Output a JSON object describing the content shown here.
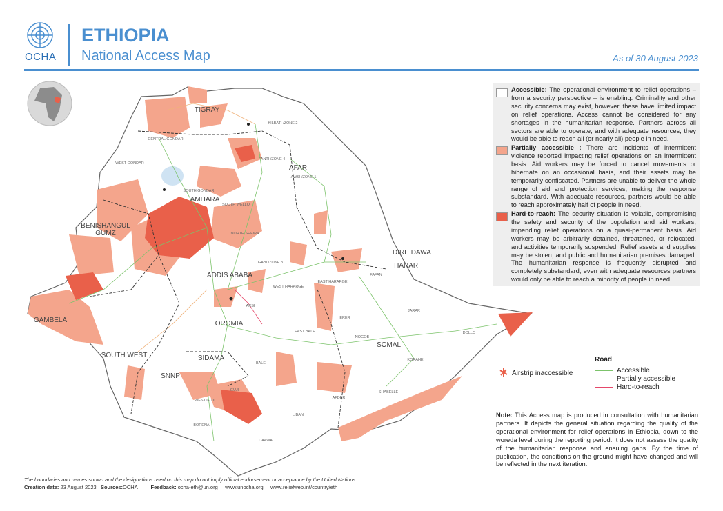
{
  "header": {
    "org": "OCHA",
    "title": "ETHIOPIA",
    "subtitle": "National Access Map",
    "date": "As of 30 August 2023"
  },
  "legend": {
    "items": [
      {
        "label": "Accessible:",
        "color": "#ffffff",
        "text": "The operational environment to relief operations – from a security perspective – is enabling. Criminality and other security concerns may exist, however, these have limited impact on relief operations. Access cannot be considered for any shortages in the humanitarian response. Partners across all sectors are able to operate, and with adequate resources, they would be able to reach all (or nearly all) people in need."
      },
      {
        "label": "Partially accessible :",
        "color": "#f4a58c",
        "text": "There are incidents of intermittent violence reported impacting relief operations on an intermittent basis. Aid workers may be forced to cancel movements or hibernate on an occasional basis, and their assets may be temporarily confiscated. Partners are unable to deliver the whole range of aid and protection services, making the response substandard. With adequate resources, partners would be able to reach approximately half of people in need."
      },
      {
        "label": "Hard-to-reach:",
        "color": "#e9604a",
        "text": "The security situation is volatile, compromising the safety and security of the population and aid workers, impending relief operations on a quasi-permanent basis. Aid workers may be arbitrarily detained, threatened, or relocated, and activities temporarily suspended. Relief assets and supplies may be stolen, and public and humanitarian premises damaged. The humanitarian response is frequently disrupted and completely substandard, even with adequate resources partners would only be able to reach a minority of people in need."
      }
    ]
  },
  "airstrip": "Airstrip inaccessible",
  "roads": {
    "title": "Road",
    "items": [
      {
        "label": "Accessible",
        "color": "#7cc36b"
      },
      {
        "label": "Partially accessible",
        "color": "#f0b27a"
      },
      {
        "label": "Hard-to-reach",
        "color": "#e5486a"
      }
    ]
  },
  "note": {
    "label": "Note:",
    "text": "This Access map is produced in consultation with humanitarian partners. It depicts the general situation regarding the quality of the operational environment for relief operations in Ethiopia, down to the woreda level during the reporting period. It does not assess the quality of the humanitarian response and ensuing gaps. By the time of publication, the conditions on the ground might have changed and will be reflected in the next iteration."
  },
  "map_labels": {
    "regions": [
      "TIGRAY",
      "AFAR",
      "AMHARA",
      "BENISHANGUL",
      "GUMZ",
      "GAMBELA",
      "OROMIA",
      "SOMALI",
      "SIDAMA",
      "SNNP",
      "SOUTH WEST",
      "ADDIS ABABA",
      "DIRE DAWA",
      "HARARI"
    ],
    "zones": [
      "WEST GONDAR",
      "CENTRAL GONDAR",
      "SOUTH GONDAR",
      "SOUTH WELLO",
      "NORTH SHEWA",
      "EAST HARARGE",
      "WEST HARARGE",
      "ARSI",
      "BALE",
      "BORENA",
      "GUJI",
      "DAAWA",
      "LIBAN",
      "AFDER",
      "SHABELLE",
      "DOLLO",
      "KORAHE",
      "ERER",
      "NOGOB",
      "JARAR",
      "FAFAN",
      "KILBATI /ZONE 2",
      "AWSI /ZONE 1",
      "FANTI /ZONE 4",
      "GABI /ZONE 3",
      "EAST BALE",
      "WEST GUJI"
    ]
  },
  "footer": {
    "disclaimer": "The boundaries and names shown and the designations used on this map do not imply official endorsement or acceptance by the United Nations.",
    "creation_label": "Creation date:",
    "creation_date": "23 August 2023",
    "sources_label": "Sources:",
    "sources": "OCHA",
    "feedback_label": "Feedback:",
    "feedback": "ocha-eth@un.org",
    "links": [
      "www.unocha.org",
      "www.reliefweb.int/country/eth"
    ]
  }
}
